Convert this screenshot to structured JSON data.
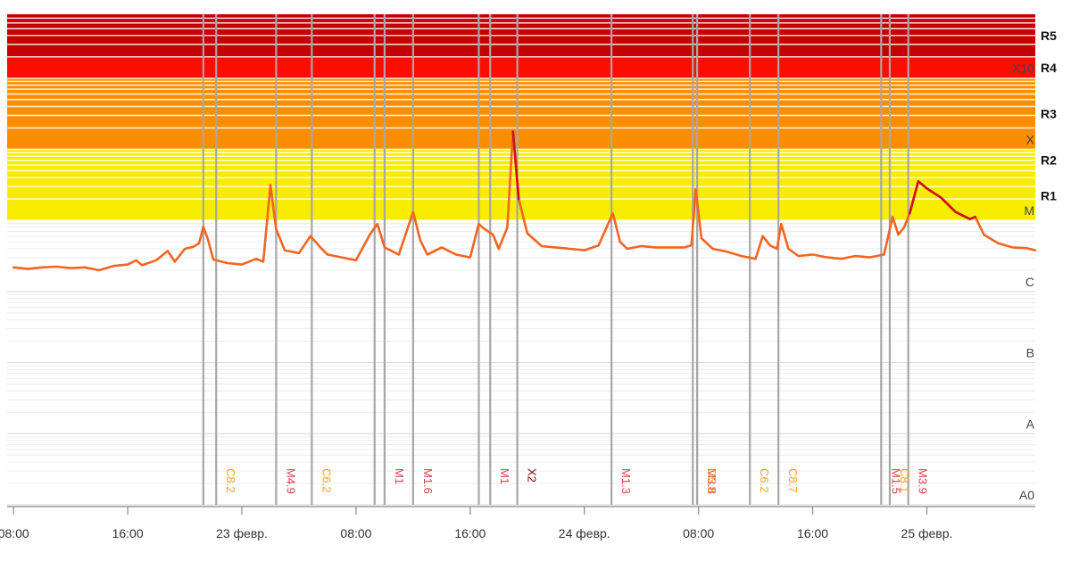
{
  "chart_data": {
    "type": "line",
    "title": "",
    "xlabel": "",
    "ylabel": "",
    "x_unit": "hours since first tick (08:00)",
    "x_range": [
      -0.2,
      71.6
    ],
    "x_ticks": [
      {
        "x": 0,
        "label": "08:00"
      },
      {
        "x": 8,
        "label": "16:00"
      },
      {
        "x": 16,
        "label": "23 февр."
      },
      {
        "x": 24,
        "label": "08:00"
      },
      {
        "x": 32,
        "label": "16:00"
      },
      {
        "x": 40,
        "label": "24 февр."
      },
      {
        "x": 48,
        "label": "08:00"
      },
      {
        "x": 56,
        "label": "16:00"
      },
      {
        "x": 64,
        "label": "25 февр."
      }
    ],
    "y_scale": "log",
    "y_unit": "flare class exponent (A0 = 0, A = 1, B = 2, C = 3, M = 4, X = 5, X10 = 6)",
    "y_range": [
      0,
      6.9
    ],
    "y_class_labels": [
      {
        "y": 0,
        "label": "A0"
      },
      {
        "y": 1,
        "label": "A"
      },
      {
        "y": 2,
        "label": "B"
      },
      {
        "y": 3,
        "label": "C"
      },
      {
        "y": 4,
        "label": "M"
      },
      {
        "y": 5,
        "label": "X"
      },
      {
        "y": 6,
        "label": "X10"
      }
    ],
    "radio_blackout_bands": [
      {
        "label": "R1",
        "from": 4.0,
        "to": 4.7,
        "color": "#f8ec00"
      },
      {
        "label": "R2",
        "from": 4.7,
        "to": 5.0,
        "color": "#f8ec00"
      },
      {
        "label": "R3",
        "from": 5.0,
        "to": 6.0,
        "color": "#fb8e00"
      },
      {
        "label": "R4",
        "from": 6.0,
        "to": 6.3,
        "color": "#fb0e00"
      },
      {
        "label": "R5",
        "from": 6.3,
        "to": 6.9,
        "color": "#c40000"
      }
    ],
    "grid": true,
    "legend": "none",
    "series": [
      {
        "color": "#f26522",
        "points": [
          [
            0,
            3.34
          ],
          [
            1,
            3.32
          ],
          [
            2,
            3.34
          ],
          [
            3,
            3.35
          ],
          [
            4,
            3.33
          ],
          [
            5,
            3.34
          ],
          [
            6,
            3.3
          ],
          [
            7,
            3.36
          ],
          [
            8,
            3.38
          ],
          [
            8.6,
            3.44
          ],
          [
            9,
            3.37
          ],
          [
            10,
            3.44
          ],
          [
            10.8,
            3.57
          ],
          [
            11.3,
            3.42
          ],
          [
            12,
            3.6
          ],
          [
            12.6,
            3.63
          ],
          [
            13,
            3.68
          ],
          [
            13.3,
            3.91
          ],
          [
            13.6,
            3.75
          ],
          [
            14,
            3.45
          ],
          [
            15,
            3.4
          ],
          [
            16,
            3.38
          ],
          [
            17,
            3.46
          ],
          [
            17.5,
            3.42
          ],
          [
            18,
            4.5
          ],
          [
            18.4,
            3.88
          ],
          [
            19,
            3.58
          ],
          [
            20,
            3.54
          ],
          [
            20.8,
            3.78
          ],
          [
            21.5,
            3.62
          ],
          [
            22,
            3.52
          ],
          [
            23,
            3.48
          ],
          [
            24,
            3.44
          ],
          [
            25,
            3.81
          ],
          [
            25.5,
            3.95
          ],
          [
            26,
            3.62
          ],
          [
            27,
            3.52
          ],
          [
            28,
            4.12
          ],
          [
            28.5,
            3.72
          ],
          [
            29,
            3.52
          ],
          [
            30,
            3.62
          ],
          [
            31,
            3.52
          ],
          [
            32,
            3.48
          ],
          [
            32.6,
            3.95
          ],
          [
            33,
            3.88
          ],
          [
            33.6,
            3.8
          ],
          [
            34,
            3.6
          ],
          [
            34.6,
            3.9
          ],
          [
            35,
            5.25
          ],
          [
            35.4,
            4.3
          ],
          [
            36,
            3.82
          ],
          [
            37,
            3.64
          ],
          [
            38,
            3.62
          ],
          [
            39,
            3.6
          ],
          [
            40,
            3.58
          ],
          [
            41,
            3.65
          ],
          [
            42,
            4.1
          ],
          [
            42.5,
            3.7
          ],
          [
            43,
            3.6
          ],
          [
            44,
            3.64
          ],
          [
            45,
            3.62
          ],
          [
            46,
            3.62
          ],
          [
            47,
            3.62
          ],
          [
            47.5,
            3.65
          ],
          [
            47.8,
            4.44
          ],
          [
            48.2,
            3.75
          ],
          [
            49,
            3.6
          ],
          [
            50,
            3.56
          ],
          [
            51,
            3.5
          ],
          [
            52,
            3.46
          ],
          [
            52.5,
            3.78
          ],
          [
            53,
            3.65
          ],
          [
            53.5,
            3.6
          ],
          [
            53.8,
            3.95
          ],
          [
            54.3,
            3.6
          ],
          [
            55,
            3.5
          ],
          [
            56,
            3.52
          ],
          [
            57,
            3.48
          ],
          [
            58,
            3.46
          ],
          [
            59,
            3.5
          ],
          [
            60,
            3.48
          ],
          [
            61,
            3.52
          ],
          [
            61.6,
            4.05
          ],
          [
            62,
            3.8
          ],
          [
            62.4,
            3.9
          ],
          [
            62.8,
            4.1
          ],
          [
            63.4,
            4.55
          ],
          [
            64,
            4.45
          ],
          [
            65,
            4.32
          ],
          [
            66,
            4.12
          ],
          [
            67,
            4.02
          ],
          [
            67.4,
            4.05
          ],
          [
            68,
            3.8
          ],
          [
            69,
            3.68
          ],
          [
            70,
            3.62
          ],
          [
            71,
            3.61
          ],
          [
            71.6,
            3.58
          ]
        ]
      }
    ],
    "flare_markers": [
      {
        "x": 13.3,
        "x2": 14.2,
        "label": "C8.2",
        "color": "#f6a21d"
      },
      {
        "x": 18.4,
        "label": "M4.9",
        "color": "#d6404a"
      },
      {
        "x": 20.9,
        "label": "C6.2",
        "color": "#f6a21d"
      },
      {
        "x": 25.3,
        "x2": 26.0,
        "label": "M1",
        "color": "#d6404a"
      },
      {
        "x": 28.0,
        "label": "M1.6",
        "color": "#d6404a"
      },
      {
        "x": 32.6,
        "x2": 33.4,
        "label": "M1",
        "color": "#d6404a"
      },
      {
        "x": 35.3,
        "label": "X2",
        "color": "#7a0000"
      },
      {
        "x": 41.9,
        "label": "M1.3",
        "color": "#d6404a"
      },
      {
        "x": 47.6,
        "x2": 47.9,
        "label": "M3.8",
        "color": "#d6404a"
      },
      {
        "x": 47.9,
        "label": "C5.8",
        "color": "#f6a21d"
      },
      {
        "x": 51.6,
        "label": "C6.2",
        "color": "#f6a21d"
      },
      {
        "x": 53.6,
        "label": "C8.7",
        "color": "#f6a21d"
      },
      {
        "x": 60.8,
        "label": "M1.5",
        "color": "#d6404a"
      },
      {
        "x": 61.4,
        "label": "C8.1",
        "color": "#f6a21d"
      },
      {
        "x": 62.7,
        "label": "M3.9",
        "color": "#d6404a"
      }
    ]
  }
}
